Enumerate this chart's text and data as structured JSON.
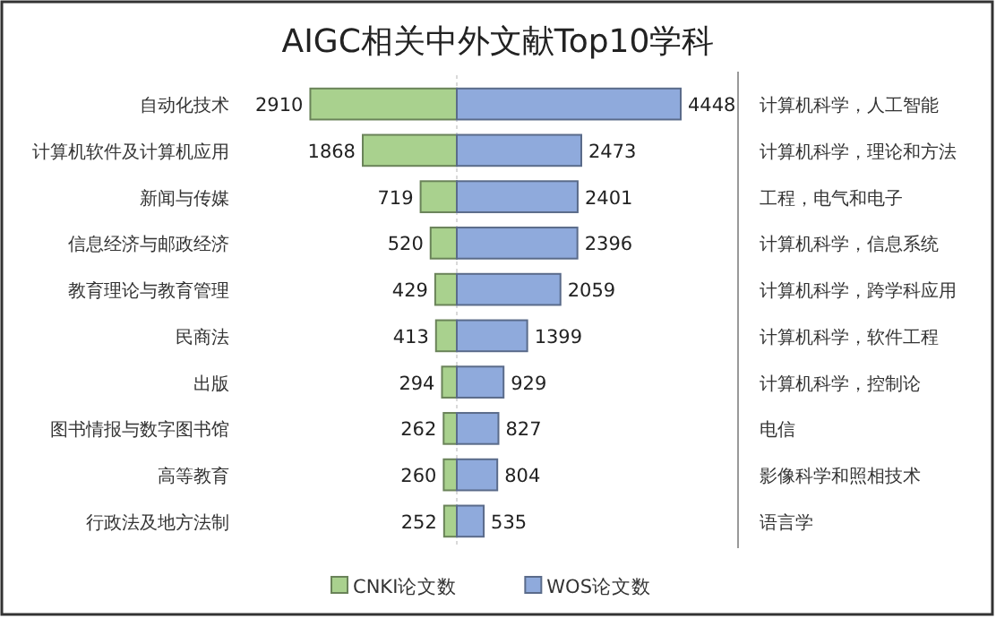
{
  "chart_data": [
    {
      "type": "bar",
      "orientation": "horizontal",
      "title": "AIGC相关中外文献Top10学科",
      "categories": [
        "自动化技术",
        "计算机软件及计算机应用",
        "新闻与传媒",
        "信息经济与邮政经济",
        "教育理论与教育管理",
        "民商法",
        "出版",
        "图书情报与数字图书馆",
        "高等教育",
        "行政法及地方法制"
      ],
      "series": [
        {
          "name": "CNKI论文数",
          "color": "#a9d18e",
          "values": [
            2910,
            1868,
            719,
            520,
            429,
            413,
            294,
            262,
            260,
            252
          ]
        }
      ],
      "tick_labels": "y",
      "data_labels": true,
      "legend": "bottom"
    },
    {
      "type": "bar",
      "orientation": "horizontal",
      "categories": [
        "计算机科学，人工智能",
        "计算机科学，理论和方法",
        "工程，电气和电子",
        "计算机科学，信息系统",
        "计算机科学，跨学科应用",
        "计算机科学，软件工程",
        "计算机科学，控制论",
        "电信",
        "影像科学和照相技术",
        "语言学"
      ],
      "series": [
        {
          "name": "WOS论文数",
          "color": "#8faadc",
          "values": [
            4448,
            2473,
            2401,
            2396,
            2059,
            1399,
            929,
            827,
            804,
            535
          ]
        }
      ],
      "tick_labels": "y",
      "data_labels": true,
      "legend": "bottom"
    }
  ]
}
